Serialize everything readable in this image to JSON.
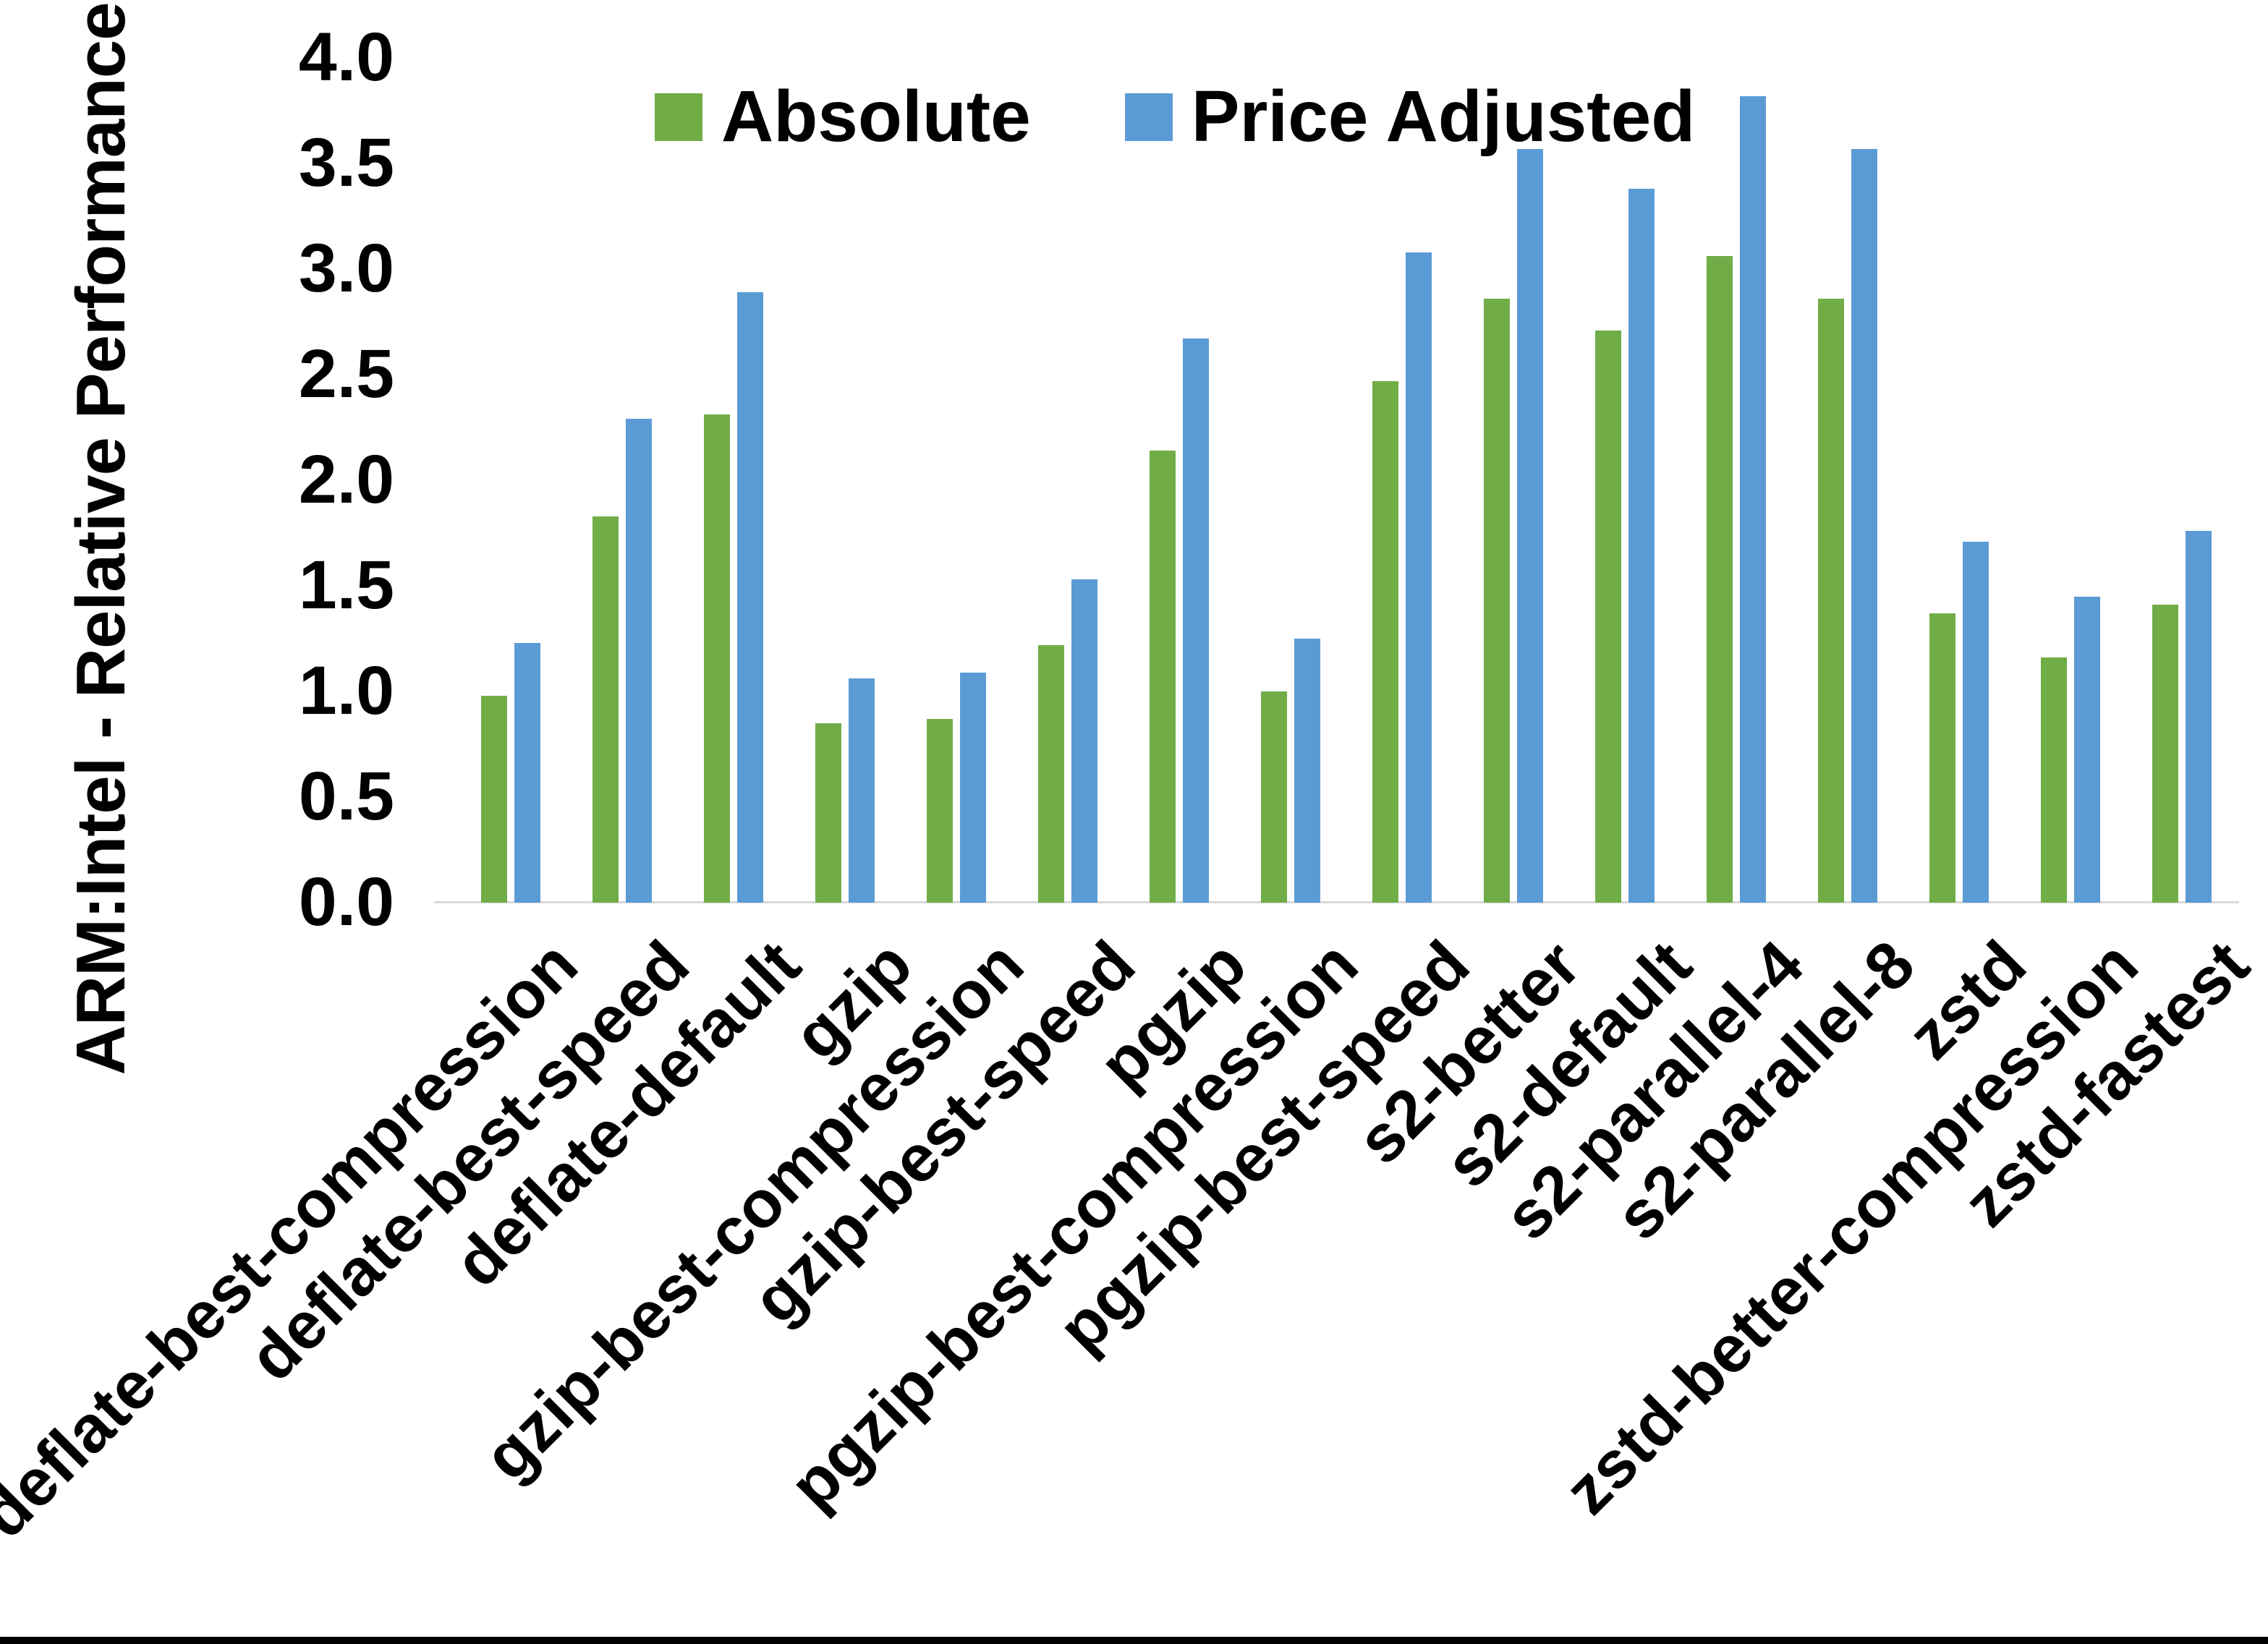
{
  "chart_data": {
    "type": "bar",
    "title": "",
    "xlabel": "",
    "ylabel": "ARM:Intel - Relative Performance",
    "ylim": [
      0.0,
      4.0
    ],
    "ytick_step": 0.5,
    "yticks": [
      "0.0",
      "0.5",
      "1.0",
      "1.5",
      "2.0",
      "2.5",
      "3.0",
      "3.5",
      "4.0"
    ],
    "grid": "off",
    "legend_position": "top-center",
    "background_color": "#ffffff",
    "axis_line_color": "#d9d9d9",
    "text_color": "#000000",
    "categories": [
      "deflate-best-compression",
      "deflate-best-speed",
      "deflate-default",
      "gzip",
      "gzip-best-compression",
      "gzip-best-speed",
      "pgzip",
      "pgzip-best-compression",
      "pgzip-best-speed",
      "s2-better",
      "s2-default",
      "s2-parallel-4",
      "s2-parallel-8",
      "zstd",
      "zstd-better-compression",
      "zstd-fastest"
    ],
    "series": [
      {
        "name": "Absolute",
        "color": "#70AD47",
        "values": [
          0.98,
          1.83,
          2.31,
          0.85,
          0.87,
          1.22,
          2.14,
          1.0,
          2.47,
          2.86,
          2.71,
          3.06,
          2.86,
          1.37,
          1.16,
          1.41
        ]
      },
      {
        "name": "Price Adjusted",
        "color": "#5B9BD5",
        "values": [
          1.23,
          2.29,
          2.89,
          1.06,
          1.09,
          1.53,
          2.67,
          1.25,
          3.08,
          3.57,
          3.38,
          3.82,
          3.57,
          1.71,
          1.45,
          1.76
        ]
      }
    ]
  }
}
